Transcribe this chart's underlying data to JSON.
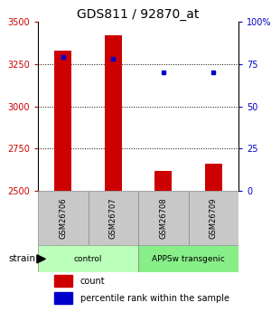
{
  "title": "GDS811 / 92870_at",
  "samples": [
    "GSM26706",
    "GSM26707",
    "GSM26708",
    "GSM26709"
  ],
  "counts": [
    3330,
    3420,
    2620,
    2660
  ],
  "percentiles": [
    79,
    78,
    70,
    70
  ],
  "ylim_left": [
    2500,
    3500
  ],
  "ylim_right": [
    0,
    100
  ],
  "yticks_left": [
    2500,
    2750,
    3000,
    3250,
    3500
  ],
  "yticks_right": [
    0,
    25,
    50,
    75,
    100
  ],
  "ytick_labels_right": [
    "0",
    "25",
    "50",
    "75",
    "100%"
  ],
  "bar_color": "#cc0000",
  "dot_color": "#0000cc",
  "bar_bottom": 2500,
  "groups": [
    {
      "label": "control",
      "indices": [
        0,
        1
      ],
      "color": "#bbffbb"
    },
    {
      "label": "APPSw transgenic",
      "indices": [
        2,
        3
      ],
      "color": "#88ee88"
    }
  ],
  "tick_label_color_left": "#cc0000",
  "tick_label_color_right": "#0000cc",
  "legend_count_color": "#cc0000",
  "legend_pct_color": "#0000cc",
  "grid_dotted_at": [
    2750,
    3000,
    3250
  ]
}
